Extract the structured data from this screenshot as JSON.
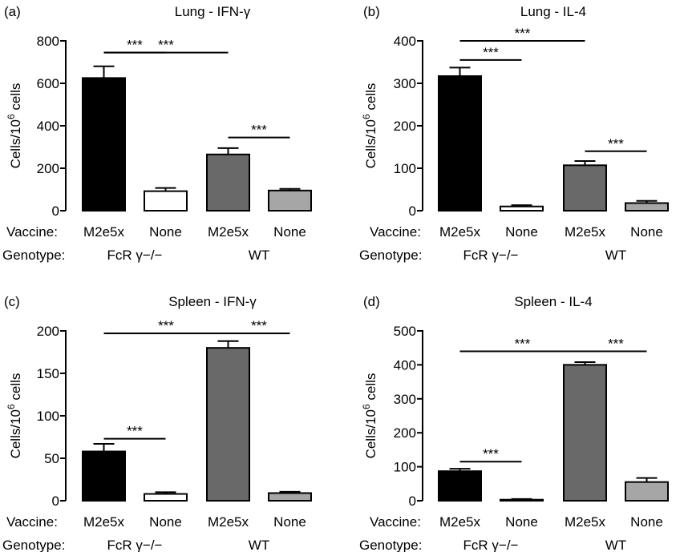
{
  "row_headers": {
    "vaccine": "Vaccine:",
    "genotype": "Genotype:"
  },
  "colors": {
    "FcR_M2e5x": "#000000",
    "FcR_None": "#ffffff",
    "WT_M2e5x": "#696969",
    "WT_None": "#a6a6a6"
  },
  "chart_data": [
    {
      "type": "bar",
      "panel": "(a)",
      "title": "Lung - IFN-γ",
      "ylabel": "Cells/10^6 cells",
      "ylim": [
        0,
        800
      ],
      "yticks": [
        0,
        200,
        400,
        600,
        800
      ],
      "categories": [
        "M2e5x",
        "None",
        "M2e5x",
        "None"
      ],
      "genotypes": [
        "FcR γ−/−",
        "WT"
      ],
      "values": [
        625,
        92,
        265,
        95
      ],
      "errors": [
        55,
        15,
        30,
        8
      ],
      "significance": [
        {
          "from": 0,
          "to": 1,
          "y": 745,
          "label": "***"
        },
        {
          "from": 0,
          "to": 2,
          "y": 745,
          "label": "***"
        },
        {
          "from": 2,
          "to": 3,
          "y": 345,
          "label": "***"
        }
      ]
    },
    {
      "type": "bar",
      "panel": "(b)",
      "title": "Lung - IL-4",
      "ylabel": "Cells/10^6 cells",
      "ylim": [
        0,
        400
      ],
      "yticks": [
        0,
        100,
        200,
        300,
        400
      ],
      "categories": [
        "M2e5x",
        "None",
        "M2e5x",
        "None"
      ],
      "genotypes": [
        "FcR γ−/−",
        "WT"
      ],
      "values": [
        317,
        10,
        107,
        18
      ],
      "errors": [
        20,
        3,
        10,
        5
      ],
      "significance": [
        {
          "from": 0,
          "to": 1,
          "y": 355,
          "label": "***"
        },
        {
          "from": 0,
          "to": 2,
          "y": 400,
          "label": "***"
        },
        {
          "from": 2,
          "to": 3,
          "y": 140,
          "label": "***"
        }
      ]
    },
    {
      "type": "bar",
      "panel": "(c)",
      "title": "Spleen - IFN-γ",
      "ylabel": "Cells/10^6 cells",
      "ylim": [
        0,
        200
      ],
      "yticks": [
        0,
        50,
        100,
        150,
        200
      ],
      "categories": [
        "M2e5x",
        "None",
        "M2e5x",
        "None"
      ],
      "genotypes": [
        "FcR γ−/−",
        "WT"
      ],
      "values": [
        58,
        8,
        180,
        9
      ],
      "errors": [
        9,
        2,
        8,
        1.5
      ],
      "significance": [
        {
          "from": 0,
          "to": 1,
          "y": 73,
          "label": "***"
        },
        {
          "from": 0,
          "to": 2,
          "y": 197,
          "label": "***"
        },
        {
          "from": 2,
          "to": 3,
          "y": 197,
          "label": "***"
        }
      ]
    },
    {
      "type": "bar",
      "panel": "(d)",
      "title": "Spleen - IL-4",
      "ylabel": "Cells/10^6 cells",
      "ylim": [
        0,
        500
      ],
      "yticks": [
        0,
        100,
        200,
        300,
        400,
        500
      ],
      "categories": [
        "M2e5x",
        "None",
        "M2e5x",
        "None"
      ],
      "genotypes": [
        "FcR γ−/−",
        "WT"
      ],
      "values": [
        87,
        3,
        400,
        55
      ],
      "errors": [
        7,
        2,
        8,
        12
      ],
      "significance": [
        {
          "from": 0,
          "to": 1,
          "y": 115,
          "label": "***"
        },
        {
          "from": 0,
          "to": 2,
          "y": 440,
          "label": "***"
        },
        {
          "from": 2,
          "to": 3,
          "y": 440,
          "label": "***"
        }
      ]
    }
  ]
}
